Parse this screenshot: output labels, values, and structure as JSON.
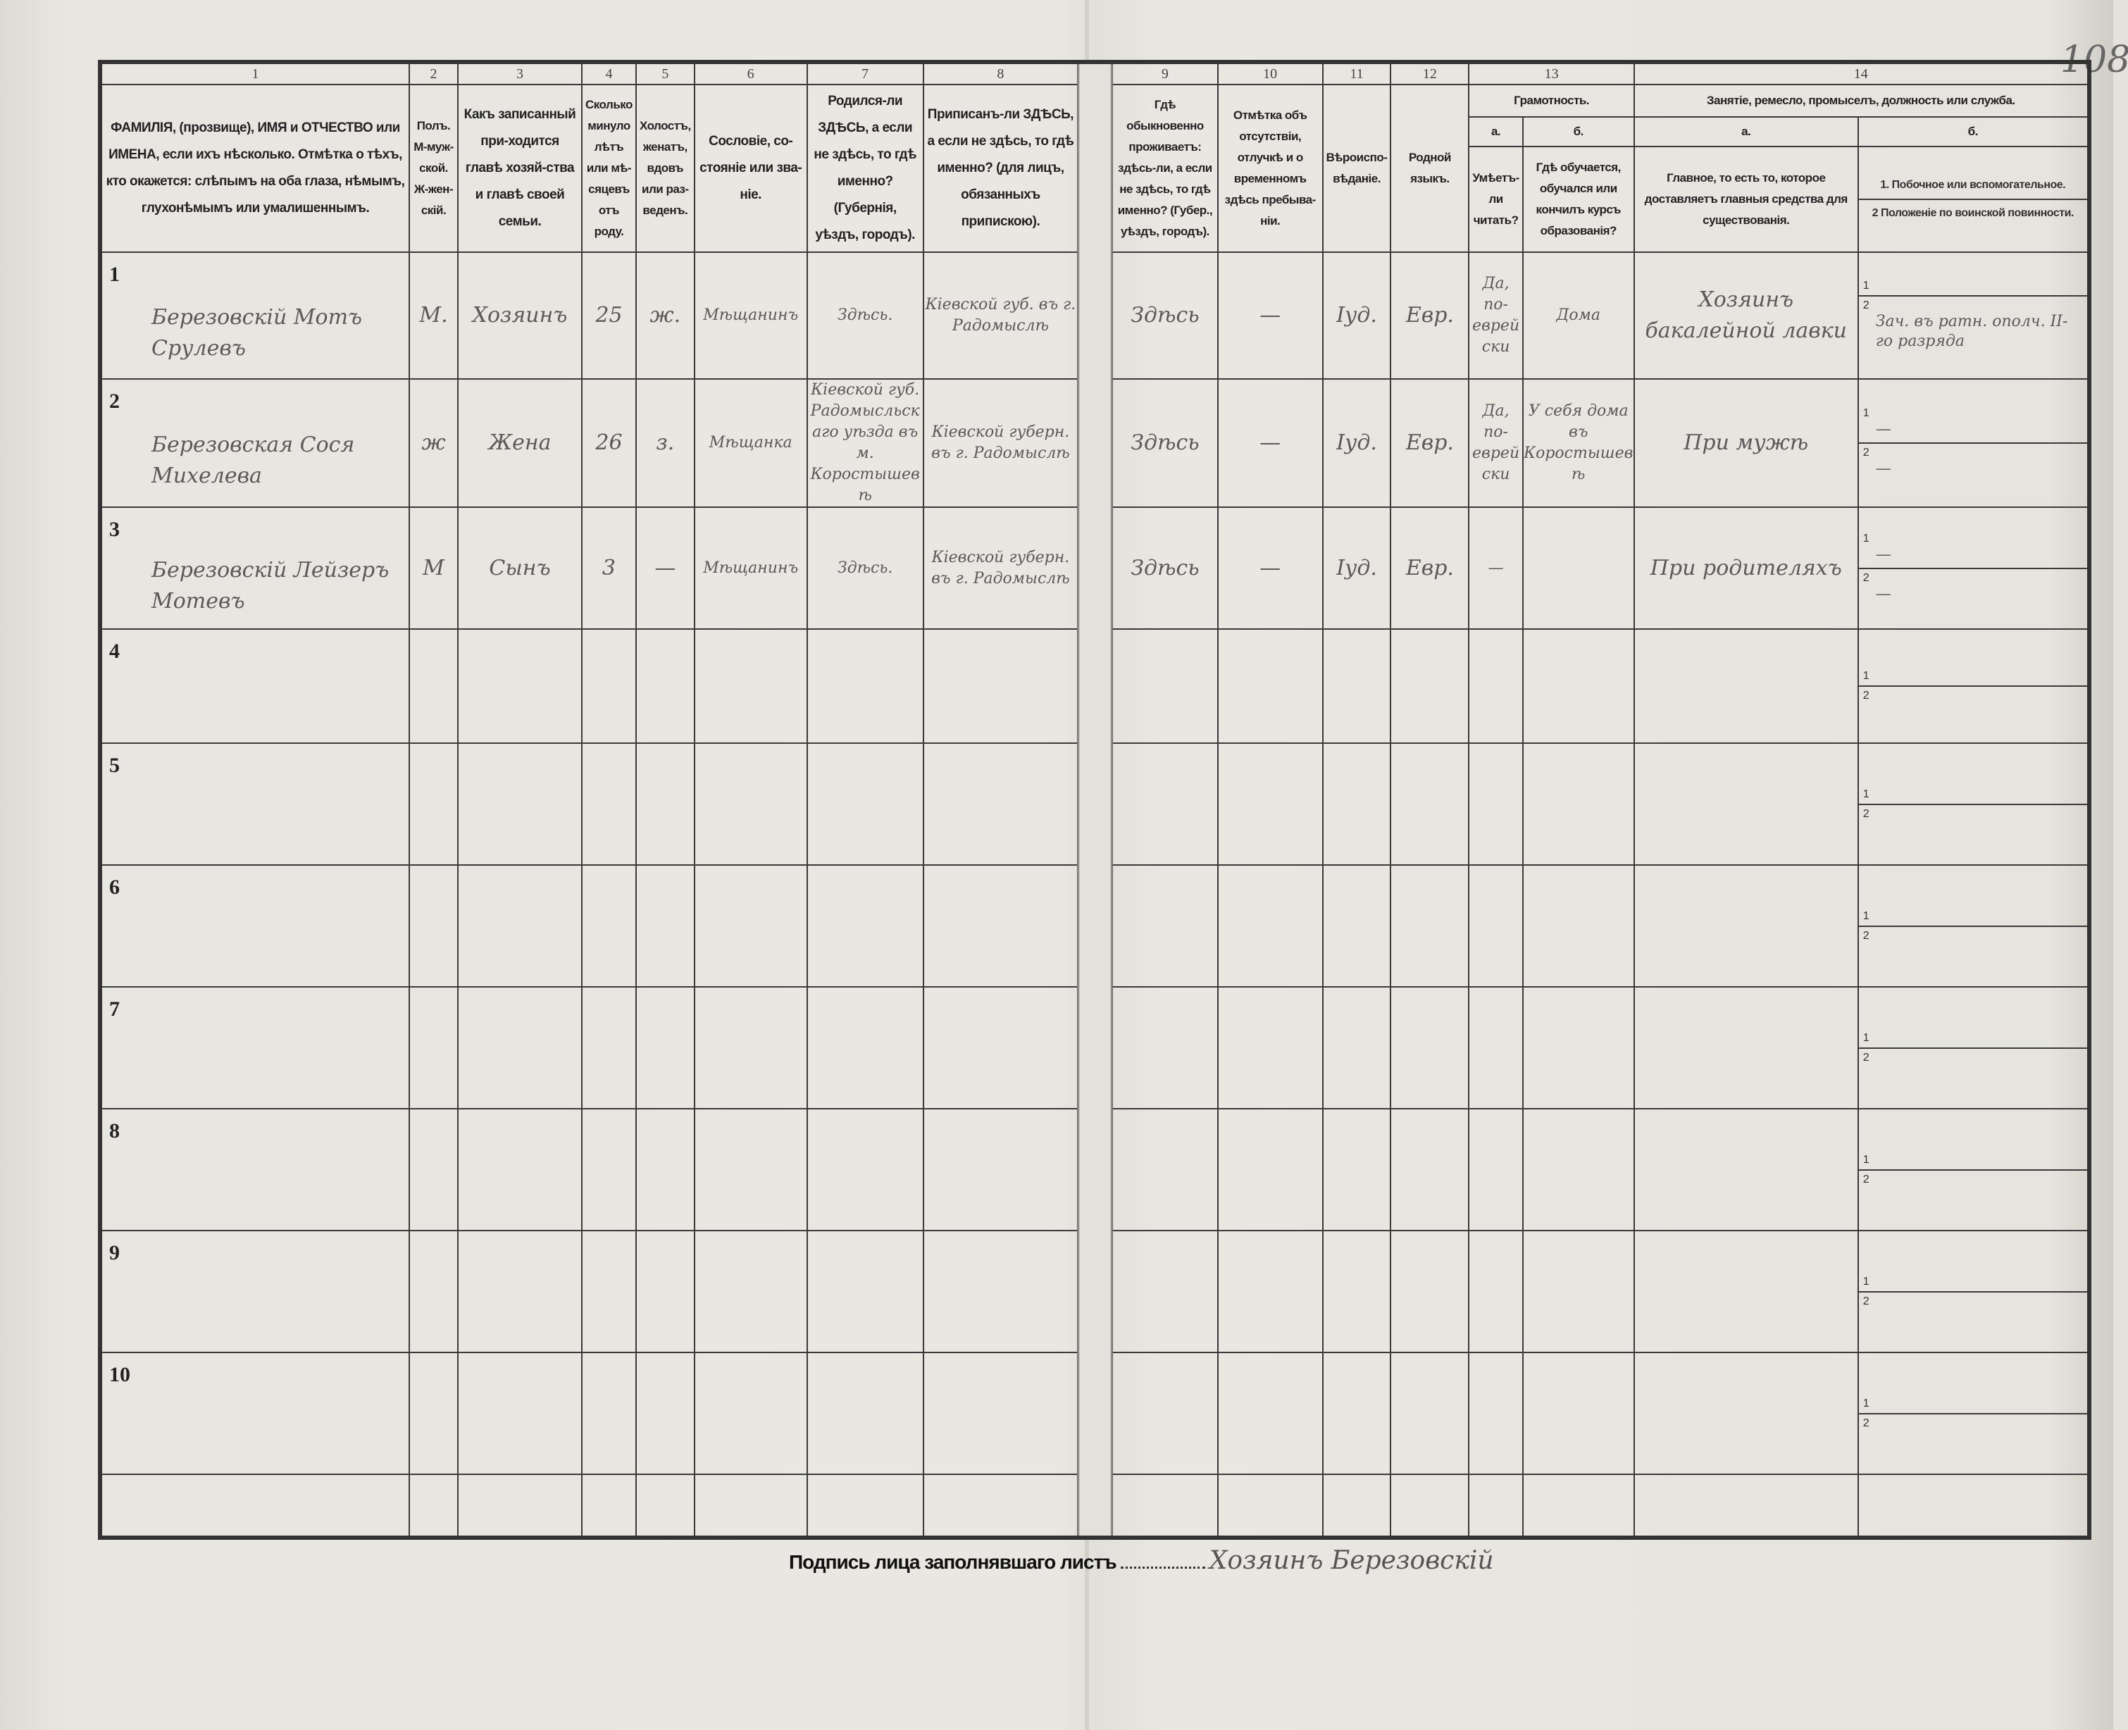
{
  "page_number": "108",
  "header": {
    "numbers": [
      "1",
      "2",
      "3",
      "4",
      "5",
      "6",
      "7",
      "8",
      "9",
      "10",
      "11",
      "12",
      "13",
      "14"
    ],
    "col1": "ФАМИЛІЯ, (прозвище), ИМЯ и ОТЧЕСТВО или ИМЕНА, если ихъ нѣсколько. Отмѣтка о тѣхъ, кто окажется: слѣпымъ на оба глаза, нѣмымъ, глухонѣмымъ или умалишеннымъ.",
    "col2": "Полъ. М-муж-ской. Ж-жен-скій.",
    "col3": "Какъ записанный при-ходится главѣ хозяй-ства и главѣ своей семьи.",
    "col4": "Сколько минуло лѣтъ или мѣ-сяцевъ отъ роду.",
    "col5": "Холостъ, женатъ, вдовъ или раз-веденъ.",
    "col6": "Сословіе, со-стояніе или зва-ніе.",
    "col7": "Родился-ли ЗДѢСЬ, а если не здѣсь, то гдѣ именно? (Губернія, уѣздъ, городъ).",
    "col8": "Приписанъ-ли ЗДѢСЬ, а если не здѣсь, то гдѣ именно? (для лицъ, обязанныхъ припискою).",
    "col9": "Гдѣ обыкновенно проживаетъ: здѣсь-ли, а если не здѣсь, то гдѣ именно? (Губер., уѣздъ, городъ).",
    "col10": "Отмѣтка объ отсутствіи, отлучкѣ и о временномъ здѣсь пребыва-ніи.",
    "col11": "Вѣроиспо-вѣданіе.",
    "col12": "Родной языкъ.",
    "col13_title": "Грамотность.",
    "col13a_label": "а.",
    "col13a": "Умѣетъ-ли читать?",
    "col13b_label": "б.",
    "col13b": "Гдѣ обучается, обучался или кончилъ курсъ образованія?",
    "col14_title": "Занятіе, ремесло, промыселъ, должность или служба.",
    "col14a_label": "а.",
    "col14a": "Главное, то есть то, которое доставляетъ главныя средства для существованія.",
    "col14b_label": "б.",
    "col14b_1": "1. Побочное или вспомогательное.",
    "col14b_2": "2 Положеніе по воинской повинности."
  },
  "rows": [
    {
      "num": "1",
      "name": "Березовскій Мотъ Срулевъ",
      "sex": "М.",
      "relation": "Хозяинъ",
      "age": "25",
      "marital": "ж.",
      "estate": "Мѣщанинъ",
      "birthplace": "Здѣсь.",
      "registered": "Кіевской губ. въ г. Радомыслѣ",
      "residence": "Здѣсь",
      "absence": "—",
      "religion": "Іуд.",
      "language": "Евр.",
      "literate": "Да, по-еврейски",
      "education": "Дома",
      "occupation": "Хозяинъ бакалейной лавки",
      "secondary": "",
      "military": "Зач. въ ратн. ополч. II-го разряда"
    },
    {
      "num": "2",
      "name": "Березовская Сося Михелева",
      "sex": "ж",
      "relation": "Жена",
      "age": "26",
      "marital": "з.",
      "estate": "Мѣщанка",
      "birthplace": "Кіевской губ. Радомысльскаго уѣзда въ м. Коростышевѣ",
      "registered": "Кіевской губерн. въ г. Радомыслѣ",
      "residence": "Здѣсь",
      "absence": "—",
      "religion": "Іуд.",
      "language": "Евр.",
      "literate": "Да, по-еврейски",
      "education": "У себя дома въ Коростышевѣ",
      "occupation": "При мужѣ",
      "secondary": "—",
      "military": "—"
    },
    {
      "num": "3",
      "name": "Березовскій Лейзеръ Мотевъ",
      "sex": "М",
      "relation": "Сынъ",
      "age": "3",
      "marital": "—",
      "estate": "Мѣщанинъ",
      "birthplace": "Здѣсь.",
      "registered": "Кіевской губерн. въ г. Радомыслѣ",
      "residence": "Здѣсь",
      "absence": "—",
      "religion": "Іуд.",
      "language": "Евр.",
      "literate": "—",
      "education": "",
      "occupation": "При родителяхъ",
      "secondary": "—",
      "military": "—"
    },
    {
      "num": "4"
    },
    {
      "num": "5"
    },
    {
      "num": "6"
    },
    {
      "num": "7"
    },
    {
      "num": "8"
    },
    {
      "num": "9"
    },
    {
      "num": "10"
    }
  ],
  "subrow_labels": [
    "1",
    "2"
  ],
  "signature": {
    "label": "Подпись лица заполнявшаго листъ",
    "value": "Хозяинъ Березовскій"
  }
}
